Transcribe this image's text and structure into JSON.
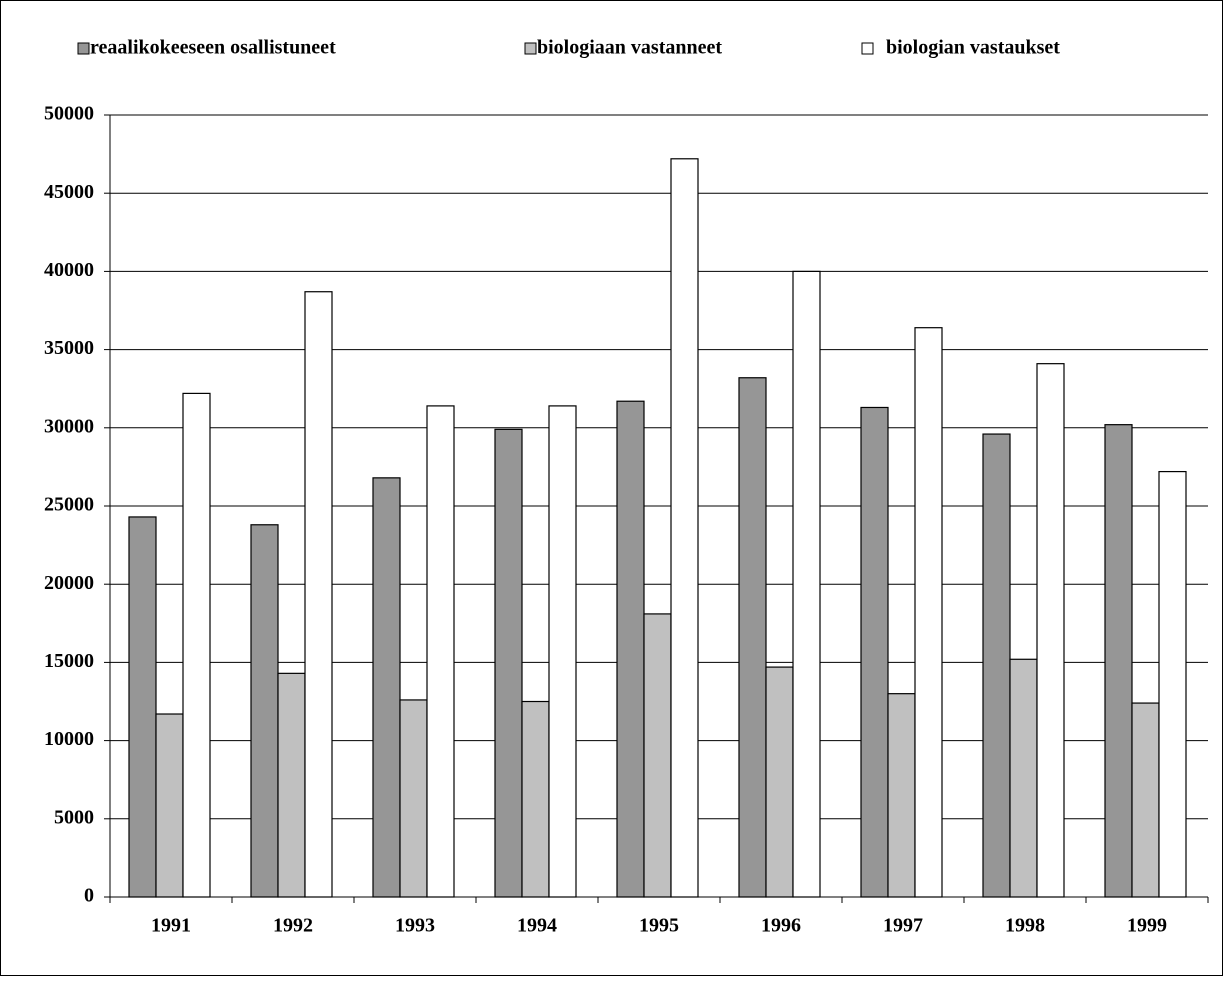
{
  "chart_data": {
    "type": "bar",
    "categories": [
      "1991",
      "1992",
      "1993",
      "1994",
      "1995",
      "1996",
      "1997",
      "1998",
      "1999"
    ],
    "series": [
      {
        "name": "reaalikokeeseen osallistuneet",
        "color": "#969696",
        "values": [
          24300,
          23800,
          26800,
          29900,
          31700,
          33200,
          31300,
          29600,
          30200
        ]
      },
      {
        "name": "biologiaan vastanneet",
        "color": "#c0c0c0",
        "values": [
          11700,
          14300,
          12600,
          12500,
          18100,
          14700,
          13000,
          15200,
          12400
        ]
      },
      {
        "name": "biologian vastaukset",
        "color": "#ffffff",
        "values": [
          32200,
          38700,
          31400,
          31400,
          47200,
          40000,
          36400,
          34100,
          27200
        ]
      }
    ],
    "ylim": [
      0,
      50000
    ],
    "yticks": [
      0,
      5000,
      10000,
      15000,
      20000,
      25000,
      30000,
      35000,
      40000,
      45000,
      50000
    ],
    "grid": true,
    "legend": "top"
  }
}
